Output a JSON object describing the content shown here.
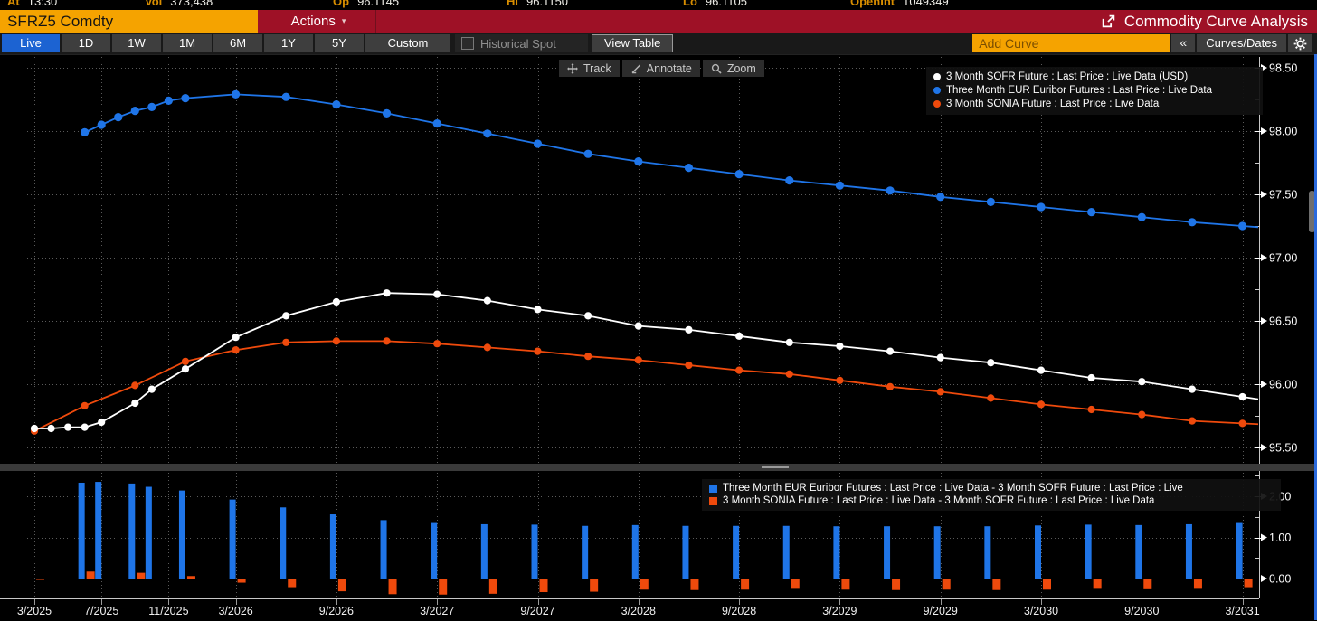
{
  "top_strip": {
    "items": [
      {
        "label": "At",
        "value": "13:30"
      },
      {
        "label": "Vol",
        "value": "373,438"
      },
      {
        "label": "Op",
        "value": "96.1145"
      },
      {
        "label": "Hi",
        "value": "96.1150"
      },
      {
        "label": "Lo",
        "value": "96.1105"
      },
      {
        "label": "OpenInt",
        "value": "1049349"
      }
    ]
  },
  "title_bar": {
    "security": "SFRZ5 Comdty",
    "actions_label": "Actions",
    "dropdown_arrow": "▾",
    "title": "Commodity Curve Analysis",
    "export_icon": "open-in-window-icon"
  },
  "toolbar": {
    "range_buttons": [
      "Live",
      "1D",
      "1W",
      "1M",
      "6M",
      "1Y",
      "5Y",
      "Custom"
    ],
    "active_range": "Live",
    "historical_spot_label": "Historical Spot",
    "historical_spot_checked": false,
    "view_table_label": "View Table",
    "add_curve_placeholder": "Add Curve",
    "collapse_label": "«",
    "curves_dates_label": "Curves/Dates",
    "gear_icon": "gear-icon"
  },
  "chart_toolbar": {
    "track_label": "Track",
    "annotate_label": "Annotate",
    "zoom_label": "Zoom"
  },
  "colors": {
    "amber": "#f5a300",
    "header_red": "#9e1126",
    "active_blue": "#1c63d2",
    "series_white": "#ffffff",
    "series_blue": "#1f75e8",
    "series_orange": "#ef4a0c",
    "grid": "#5a5a5a",
    "axis": "#c8c8c8"
  },
  "chart_data": {
    "type": "line",
    "x_axis": {
      "unit": "months_from_3_2025",
      "tick_months": [
        0,
        4,
        8,
        12,
        18,
        24,
        30,
        36,
        42,
        48,
        54,
        60,
        66,
        72
      ],
      "tick_labels": [
        "3/2025",
        "7/2025",
        "11/2025",
        "3/2026",
        "9/2026",
        "3/2027",
        "9/2027",
        "3/2028",
        "9/2028",
        "3/2029",
        "9/2029",
        "3/2030",
        "9/2030",
        "3/2031"
      ]
    },
    "main_panel": {
      "y_ticks": [
        "98.50",
        "98.00",
        "97.50",
        "97.00",
        "96.50",
        "96.00",
        "95.50"
      ],
      "ylim": [
        95.42,
        98.6
      ],
      "grid": "dotted",
      "legend_position": "top-right",
      "series": [
        {
          "name": "3 Month SOFR Future : Last Price : Live Data (USD)",
          "color": "#ffffff",
          "marker": "circle",
          "points": [
            [
              0,
              95.65
            ],
            [
              1,
              95.65
            ],
            [
              2,
              95.66
            ],
            [
              3,
              95.66
            ],
            [
              4,
              95.7
            ],
            [
              6,
              95.85
            ],
            [
              7,
              95.96
            ],
            [
              9,
              96.12
            ],
            [
              12,
              96.37
            ],
            [
              15,
              96.54
            ],
            [
              18,
              96.65
            ],
            [
              21,
              96.72
            ],
            [
              24,
              96.71
            ],
            [
              27,
              96.66
            ],
            [
              30,
              96.59
            ],
            [
              33,
              96.54
            ],
            [
              36,
              96.46
            ],
            [
              39,
              96.43
            ],
            [
              42,
              96.38
            ],
            [
              45,
              96.33
            ],
            [
              48,
              96.3
            ],
            [
              51,
              96.26
            ],
            [
              54,
              96.21
            ],
            [
              57,
              96.17
            ],
            [
              60,
              96.11
            ],
            [
              63,
              96.05
            ],
            [
              66,
              96.02
            ],
            [
              69,
              95.96
            ],
            [
              72,
              95.9
            ]
          ]
        },
        {
          "name": "Three Month EUR Euribor Futures : Last Price : Live Data",
          "color": "#1f75e8",
          "marker": "circle",
          "points": [
            [
              3,
              97.99
            ],
            [
              4,
              98.05
            ],
            [
              5,
              98.11
            ],
            [
              6,
              98.16
            ],
            [
              7,
              98.19
            ],
            [
              8,
              98.24
            ],
            [
              9,
              98.26
            ],
            [
              12,
              98.29
            ],
            [
              15,
              98.27
            ],
            [
              18,
              98.21
            ],
            [
              21,
              98.14
            ],
            [
              24,
              98.06
            ],
            [
              27,
              97.98
            ],
            [
              30,
              97.9
            ],
            [
              33,
              97.82
            ],
            [
              36,
              97.76
            ],
            [
              39,
              97.71
            ],
            [
              42,
              97.66
            ],
            [
              45,
              97.61
            ],
            [
              48,
              97.57
            ],
            [
              51,
              97.53
            ],
            [
              54,
              97.48
            ],
            [
              57,
              97.44
            ],
            [
              60,
              97.4
            ],
            [
              63,
              97.36
            ],
            [
              66,
              97.32
            ],
            [
              69,
              97.28
            ],
            [
              72,
              97.25
            ]
          ]
        },
        {
          "name": "3 Month SONIA Future : Last Price : Live Data",
          "color": "#ef4a0c",
          "marker": "circle",
          "points": [
            [
              0,
              95.63
            ],
            [
              3,
              95.83
            ],
            [
              6,
              95.99
            ],
            [
              9,
              96.18
            ],
            [
              12,
              96.27
            ],
            [
              15,
              96.33
            ],
            [
              18,
              96.34
            ],
            [
              21,
              96.34
            ],
            [
              24,
              96.32
            ],
            [
              27,
              96.29
            ],
            [
              30,
              96.26
            ],
            [
              33,
              96.22
            ],
            [
              36,
              96.19
            ],
            [
              39,
              96.15
            ],
            [
              42,
              96.11
            ],
            [
              45,
              96.08
            ],
            [
              48,
              96.03
            ],
            [
              51,
              95.98
            ],
            [
              54,
              95.94
            ],
            [
              57,
              95.89
            ],
            [
              60,
              95.84
            ],
            [
              63,
              95.8
            ],
            [
              66,
              95.76
            ],
            [
              69,
              95.71
            ],
            [
              72,
              95.69
            ]
          ]
        }
      ]
    },
    "spread_panel": {
      "type": "bar",
      "y_ticks": [
        "2.00",
        "1.00",
        "0.00"
      ],
      "ylim": [
        -0.55,
        2.65
      ],
      "legend_position": "top-right",
      "series": [
        {
          "name": "Three Month EUR Euribor Futures : Last Price : Live Data - 3 Month SOFR Future : Last Price : Live",
          "color": "#1f75e8",
          "points": [
            [
              3,
              2.33
            ],
            [
              4,
              2.35
            ],
            [
              6,
              2.31
            ],
            [
              7,
              2.23
            ],
            [
              9,
              2.14
            ],
            [
              12,
              1.92
            ],
            [
              15,
              1.73
            ],
            [
              18,
              1.56
            ],
            [
              21,
              1.42
            ],
            [
              24,
              1.35
            ],
            [
              27,
              1.32
            ],
            [
              30,
              1.31
            ],
            [
              33,
              1.28
            ],
            [
              36,
              1.3
            ],
            [
              39,
              1.28
            ],
            [
              42,
              1.28
            ],
            [
              45,
              1.28
            ],
            [
              48,
              1.27
            ],
            [
              51,
              1.27
            ],
            [
              54,
              1.27
            ],
            [
              57,
              1.27
            ],
            [
              60,
              1.29
            ],
            [
              63,
              1.31
            ],
            [
              66,
              1.3
            ],
            [
              69,
              1.32
            ],
            [
              72,
              1.35
            ]
          ]
        },
        {
          "name": "3 Month SONIA Future : Last Price : Live Data - 3 Month SOFR Future : Last Price : Live Data",
          "color": "#ef4a0c",
          "points": [
            [
              0,
              -0.02
            ],
            [
              3,
              0.17
            ],
            [
              6,
              0.14
            ],
            [
              9,
              0.06
            ],
            [
              12,
              -0.1
            ],
            [
              15,
              -0.21
            ],
            [
              18,
              -0.31
            ],
            [
              21,
              -0.38
            ],
            [
              24,
              -0.39
            ],
            [
              27,
              -0.37
            ],
            [
              30,
              -0.33
            ],
            [
              33,
              -0.32
            ],
            [
              36,
              -0.27
            ],
            [
              39,
              -0.28
            ],
            [
              42,
              -0.27
            ],
            [
              45,
              -0.25
            ],
            [
              48,
              -0.27
            ],
            [
              51,
              -0.28
            ],
            [
              54,
              -0.27
            ],
            [
              57,
              -0.28
            ],
            [
              60,
              -0.27
            ],
            [
              63,
              -0.25
            ],
            [
              66,
              -0.26
            ],
            [
              69,
              -0.25
            ],
            [
              72,
              -0.21
            ]
          ]
        }
      ]
    }
  }
}
